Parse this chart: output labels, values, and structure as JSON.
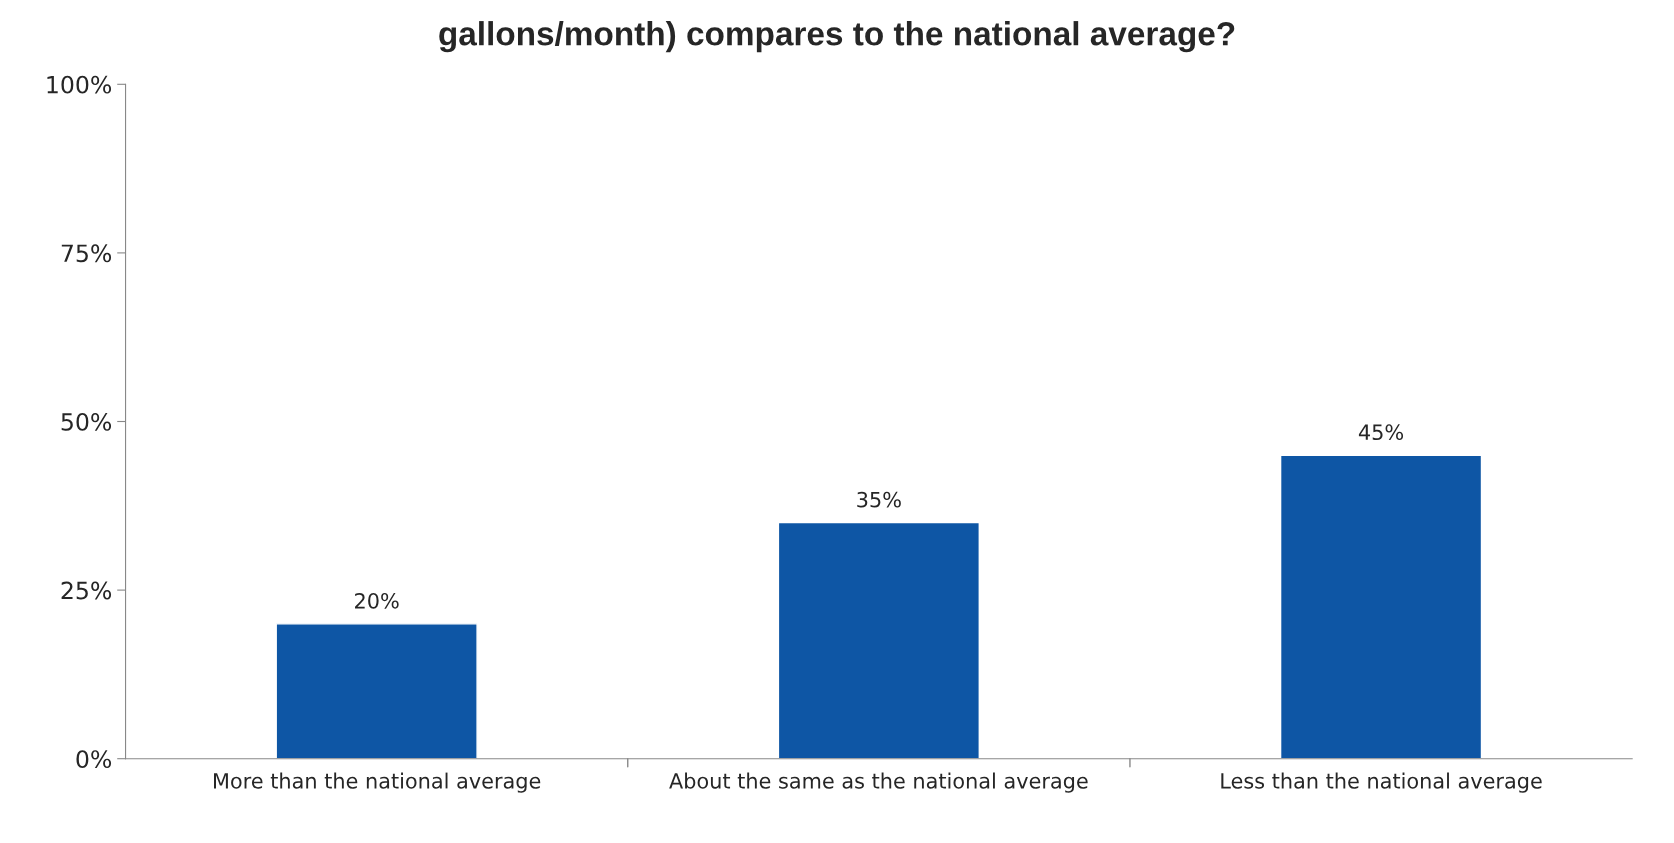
{
  "chart_data": {
    "type": "bar",
    "title": "gallons/month) compares to the national average?",
    "categories": [
      "More than the national average",
      "About the same as the national average",
      "Less than the national average"
    ],
    "values": [
      20,
      35,
      45
    ],
    "color": "#0e56a5",
    "ylim": [
      0,
      100
    ],
    "yticks": [
      {
        "value": 0,
        "label": "0%"
      },
      {
        "value": 25,
        "label": "25%"
      },
      {
        "value": 50,
        "label": "50%"
      },
      {
        "value": 75,
        "label": "75%"
      },
      {
        "value": 100,
        "label": "100%"
      }
    ],
    "value_labels": [
      "20%",
      "35%",
      "45%"
    ],
    "grid": false,
    "legend": false
  }
}
